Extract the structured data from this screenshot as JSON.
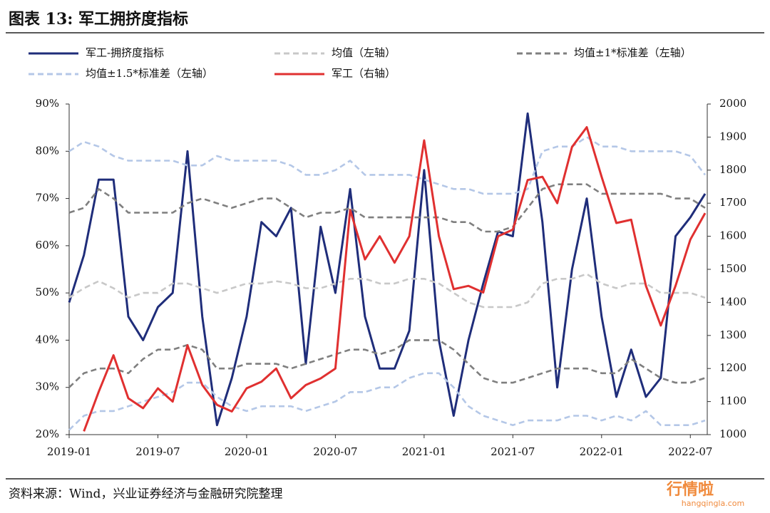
{
  "title": "图表 13:  军工拥挤度指标",
  "source": "资料来源：Wind，兴业证券经济与金融研究院整理",
  "watermark": {
    "brand": "行情啦",
    "site": "hangqingla.com"
  },
  "chart_data": {
    "type": "line",
    "x": [
      "2019-01",
      "2019-02",
      "2019-03",
      "2019-04",
      "2019-05",
      "2019-06",
      "2019-07",
      "2019-08",
      "2019-09",
      "2019-10",
      "2019-11",
      "2019-12",
      "2020-01",
      "2020-02",
      "2020-03",
      "2020-04",
      "2020-05",
      "2020-06",
      "2020-07",
      "2020-08",
      "2020-09",
      "2020-10",
      "2020-11",
      "2020-12",
      "2021-01",
      "2021-02",
      "2021-03",
      "2021-04",
      "2021-05",
      "2021-06",
      "2021-07",
      "2021-08",
      "2021-09",
      "2021-10",
      "2021-11",
      "2021-12",
      "2022-01",
      "2022-02",
      "2022-03",
      "2022-04",
      "2022-05",
      "2022-06",
      "2022-07",
      "2022-08"
    ],
    "xticks": [
      "2019-01",
      "2019-07",
      "2020-01",
      "2020-07",
      "2021-01",
      "2021-07",
      "2022-01",
      "2022-07"
    ],
    "ylim": [
      20,
      90
    ],
    "yticks": [
      {
        "value": 20,
        "label": "20%"
      },
      {
        "value": 30,
        "label": "30%"
      },
      {
        "value": 40,
        "label": "40%"
      },
      {
        "value": 50,
        "label": "50%"
      },
      {
        "value": 60,
        "label": "60%"
      },
      {
        "value": 70,
        "label": "70%"
      },
      {
        "value": 80,
        "label": "80%"
      },
      {
        "value": 90,
        "label": "90%"
      }
    ],
    "y2lim": [
      1000,
      2000
    ],
    "y2ticks": [
      1000,
      1100,
      1200,
      1300,
      1400,
      1500,
      1600,
      1700,
      1800,
      1900,
      2000
    ],
    "series": [
      {
        "name": "军工-拥挤度指标",
        "color": "#1f2d7a",
        "dash": "none",
        "values": [
          48,
          58,
          74,
          74,
          45,
          40,
          47,
          50,
          80,
          45,
          22,
          32,
          45,
          65,
          62,
          68,
          35,
          64,
          50,
          72,
          45,
          34,
          34,
          42,
          76,
          40,
          24,
          40,
          52,
          63,
          62,
          88,
          65,
          30,
          55,
          70,
          45,
          28,
          38,
          28,
          32,
          62,
          66,
          71
        ]
      },
      {
        "name": "均值（左轴）",
        "color": "#c8c8c8",
        "dash": "8 5",
        "values": [
          49,
          51,
          52.5,
          51,
          49,
          50,
          50,
          52,
          52,
          51,
          50,
          51,
          52,
          52,
          52.5,
          52,
          51,
          51,
          52,
          53,
          53,
          52,
          52,
          53,
          53,
          52,
          50,
          48,
          47,
          47,
          47,
          48,
          52,
          53,
          53,
          54,
          52,
          51,
          52,
          52,
          50,
          50,
          50,
          49
        ]
      },
      {
        "name": "均值±1*标准差（左轴）",
        "color": "#7f7f7f",
        "dash": "8 5",
        "values": [
          67,
          68,
          72,
          70,
          67,
          67,
          67,
          67,
          69,
          70,
          69,
          68,
          69,
          70,
          70,
          68,
          66,
          67,
          67,
          68,
          66,
          66,
          66,
          66,
          66,
          66,
          65,
          65,
          63,
          63,
          64,
          68,
          72,
          73,
          73,
          73,
          71,
          71,
          71,
          71,
          71,
          70,
          70,
          68
        ]
      },
      {
        "name": "均值±1*标准差（左轴）",
        "color": "#7f7f7f",
        "dash": "8 5",
        "values": [
          30,
          33,
          34,
          34,
          33,
          36,
          38,
          38,
          39,
          38,
          34,
          34,
          35,
          35,
          35,
          34,
          35,
          36,
          37,
          38,
          38,
          37,
          38,
          40,
          40,
          40,
          38,
          35,
          32,
          31,
          31,
          32,
          33,
          34,
          34,
          34,
          33,
          33,
          36,
          34,
          32,
          31,
          31,
          32
        ]
      },
      {
        "name": "均值±1.5*标准差（左轴）",
        "color": "#b4c7e7",
        "dash": "8 5",
        "values": [
          80,
          82,
          81,
          79,
          78,
          78,
          78,
          78,
          77,
          77,
          79,
          78,
          78,
          78,
          78,
          77,
          75,
          75,
          76,
          78,
          75,
          75,
          75,
          75,
          74,
          73,
          72,
          72,
          71,
          71,
          71,
          72,
          80,
          81,
          81,
          83,
          81,
          81,
          80,
          80,
          80,
          80,
          79,
          75
        ]
      },
      {
        "name": "均值±1.5*标准差（左轴）",
        "color": "#b4c7e7",
        "dash": "8 5",
        "values": [
          21,
          24,
          25,
          25,
          26,
          27,
          28,
          29,
          31,
          31,
          28,
          26,
          25,
          26,
          26,
          26,
          25,
          26,
          27,
          29,
          29,
          30,
          30,
          32,
          33,
          33,
          30,
          26,
          24,
          23,
          22,
          23,
          23,
          23,
          24,
          24,
          23,
          24,
          23,
          25,
          22,
          22,
          22,
          23
        ]
      },
      {
        "name": "军工（右轴）",
        "color": "#e03030",
        "dash": "none",
        "axis": "y2",
        "values": [
          null,
          1010,
          1130,
          1240,
          1110,
          1080,
          1140,
          1100,
          1270,
          1150,
          1090,
          1070,
          1140,
          1160,
          1200,
          1110,
          1150,
          1170,
          1200,
          1680,
          1530,
          1600,
          1520,
          1600,
          1890,
          1600,
          1440,
          1450,
          1430,
          1600,
          1620,
          1770,
          1780,
          1700,
          1870,
          1930,
          1780,
          1640,
          1650,
          1450,
          1330,
          1450,
          1590,
          1670
        ]
      }
    ]
  }
}
